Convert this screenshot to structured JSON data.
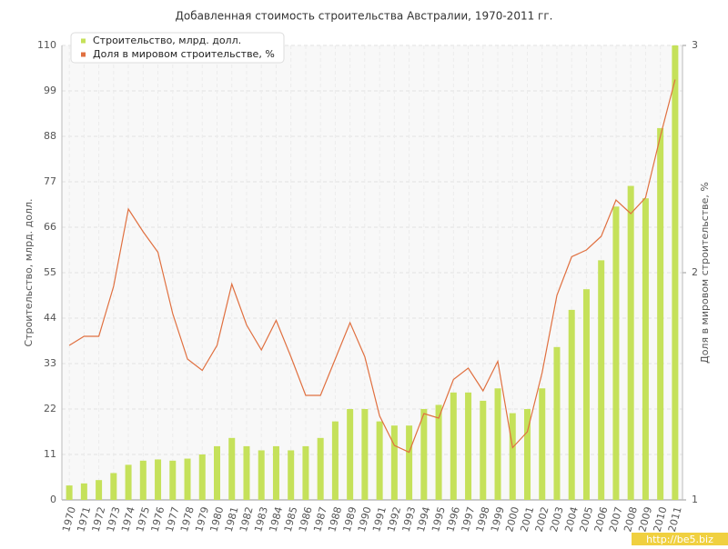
{
  "chart_data": {
    "type": "bar-line",
    "title": "Добавленная стоимость строительства Австралии, 1970-2011 гг.",
    "y_label": "Строительство, млрд. долл.",
    "y2_label": "Доля в мировом строительстве, %",
    "categories": [
      "1970",
      "1971",
      "1972",
      "1973",
      "1974",
      "1975",
      "1976",
      "1977",
      "1978",
      "1979",
      "1980",
      "1981",
      "1982",
      "1983",
      "1984",
      "1985",
      "1986",
      "1987",
      "1988",
      "1989",
      "1990",
      "1991",
      "1992",
      "1993",
      "1994",
      "1995",
      "1996",
      "1997",
      "1998",
      "1999",
      "2000",
      "2001",
      "2002",
      "2003",
      "2004",
      "2005",
      "2006",
      "2007",
      "2008",
      "2009",
      "2010",
      "2011"
    ],
    "series": [
      {
        "name": "Строительство, млрд. долл.",
        "type": "bar",
        "color": "#c5e15a",
        "values": [
          3.5,
          4,
          4.8,
          6.5,
          8.5,
          9.5,
          9.8,
          9.5,
          10,
          11,
          13,
          15,
          13,
          12,
          13,
          12,
          13,
          15,
          19,
          22,
          22,
          19,
          18,
          18,
          22,
          23,
          26,
          26,
          24,
          27,
          21,
          22,
          27,
          37,
          46,
          51,
          58,
          71,
          76,
          73,
          90,
          110
        ]
      },
      {
        "name": "Доля в мировом строительстве, %",
        "type": "line",
        "axis": "y2",
        "color": "#e07040",
        "values": [
          1.68,
          1.72,
          1.72,
          1.94,
          2.28,
          2.18,
          2.09,
          1.82,
          1.62,
          1.57,
          1.68,
          1.95,
          1.77,
          1.66,
          1.79,
          1.63,
          1.46,
          1.46,
          1.62,
          1.78,
          1.63,
          1.37,
          1.24,
          1.21,
          1.38,
          1.36,
          1.53,
          1.58,
          1.48,
          1.61,
          1.23,
          1.3,
          1.56,
          1.9,
          2.07,
          2.1,
          2.16,
          2.32,
          2.26,
          2.33,
          2.6,
          2.85
        ]
      }
    ],
    "ylim": [
      0,
      110
    ],
    "yticks": [
      0,
      11,
      22,
      33,
      44,
      55,
      66,
      77,
      88,
      99,
      110
    ],
    "y2lim": [
      1,
      3
    ],
    "y2ticks": [
      1,
      2,
      3
    ],
    "grid": true,
    "legend": "top-left",
    "watermark": "http://be5.biz"
  }
}
